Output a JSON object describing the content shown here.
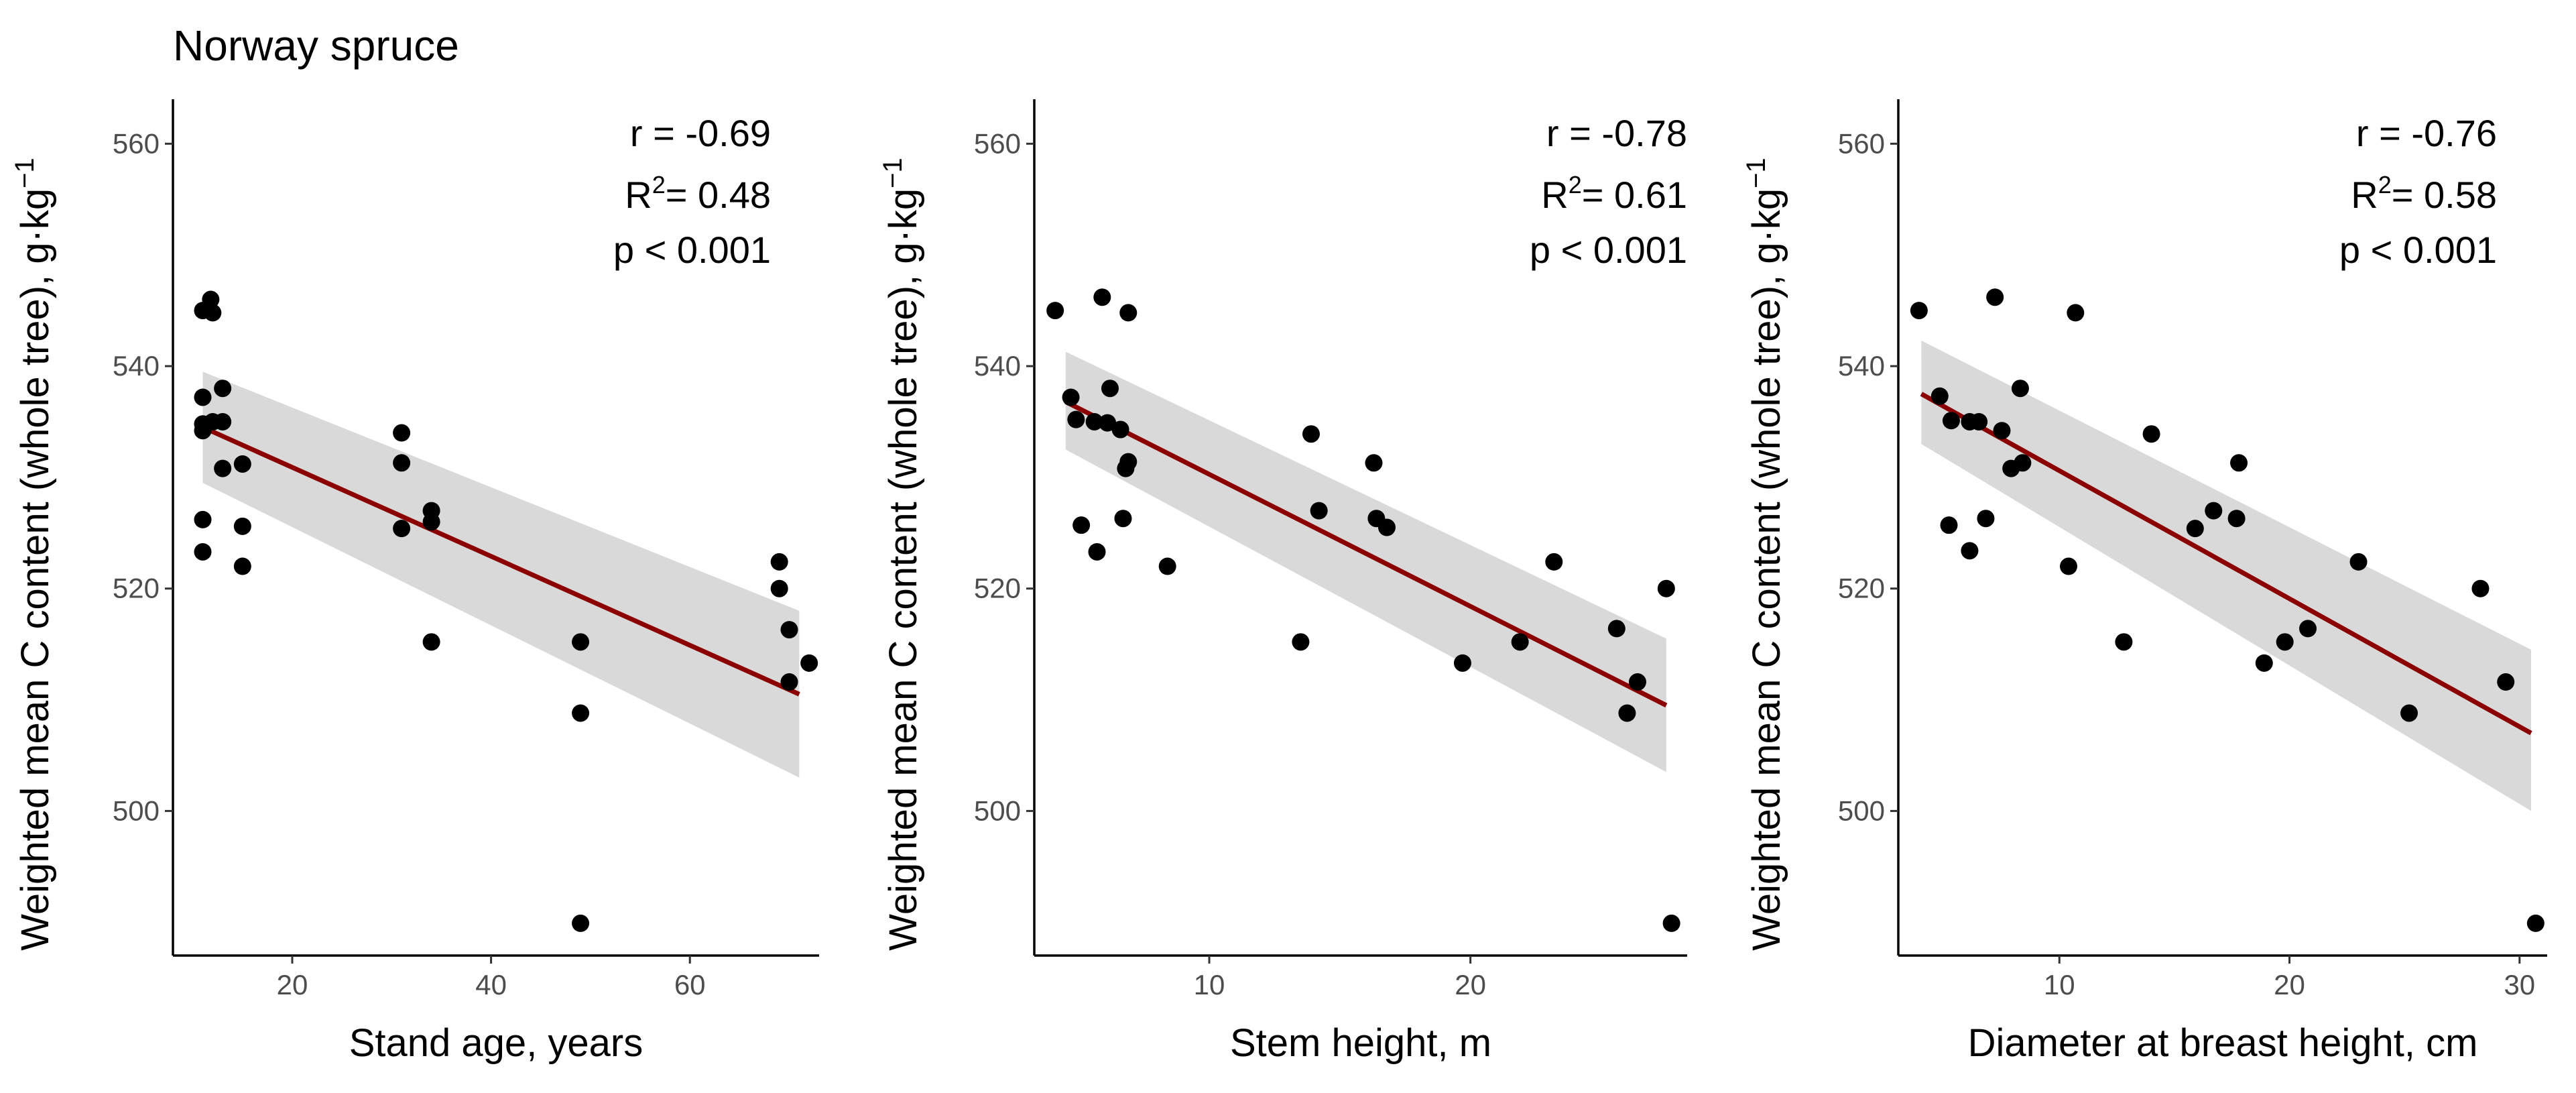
{
  "figure": {
    "title": "Norway spruce"
  },
  "colors": {
    "points": "#000000",
    "fit_line": "#8b0000",
    "ci_band": "#d9d9d9",
    "tick_text": "#4d4d4d"
  },
  "chart_data": [
    {
      "type": "scatter",
      "title": "",
      "xlabel": "Stand age, years",
      "ylabel": "Weighted mean C content (whole tree), g·kg",
      "ylabel_superscript": "−1",
      "xlim": [
        8,
        73
      ],
      "ylim": [
        487,
        564
      ],
      "x_ticks": [
        20,
        40,
        60
      ],
      "y_ticks": [
        500,
        520,
        540,
        560
      ],
      "grid": false,
      "stats": {
        "r": "r = -0.69",
        "r2_prefix": "R",
        "r2_sup": "2",
        "r2_value": "= 0.48",
        "p": "p < 0.001"
      },
      "fit": {
        "x": [
          11,
          71
        ],
        "y": [
          534.5,
          510.5
        ],
        "ci_lower": [
          529.5,
          503
        ],
        "ci_upper": [
          539.5,
          518
        ]
      },
      "points": [
        {
          "x": 11,
          "y": 545
        },
        {
          "x": 11.8,
          "y": 546
        },
        {
          "x": 12,
          "y": 544.8
        },
        {
          "x": 11,
          "y": 537.2
        },
        {
          "x": 11,
          "y": 534.8
        },
        {
          "x": 11,
          "y": 534.2
        },
        {
          "x": 12,
          "y": 535
        },
        {
          "x": 13,
          "y": 535
        },
        {
          "x": 13,
          "y": 538
        },
        {
          "x": 13,
          "y": 530.8
        },
        {
          "x": 15,
          "y": 531.2
        },
        {
          "x": 11,
          "y": 526.2
        },
        {
          "x": 11,
          "y": 523.3
        },
        {
          "x": 15,
          "y": 525.6
        },
        {
          "x": 15,
          "y": 522
        },
        {
          "x": 31,
          "y": 534
        },
        {
          "x": 31,
          "y": 531.3
        },
        {
          "x": 31,
          "y": 525.4
        },
        {
          "x": 34,
          "y": 527
        },
        {
          "x": 34,
          "y": 526
        },
        {
          "x": 34,
          "y": 515.2
        },
        {
          "x": 49,
          "y": 515.2
        },
        {
          "x": 49,
          "y": 508.8
        },
        {
          "x": 49,
          "y": 489.9
        },
        {
          "x": 69,
          "y": 522.4
        },
        {
          "x": 69,
          "y": 520
        },
        {
          "x": 70,
          "y": 516.3
        },
        {
          "x": 70,
          "y": 511.6
        },
        {
          "x": 72,
          "y": 513.3
        }
      ]
    },
    {
      "type": "scatter",
      "title": "",
      "xlabel": "Stem height, m",
      "ylabel": "Weighted mean C content (whole tree), g·kg",
      "ylabel_superscript": "−1",
      "xlim": [
        3.3,
        28.3
      ],
      "ylim": [
        487,
        564
      ],
      "x_ticks": [
        10,
        20
      ],
      "y_ticks": [
        500,
        520,
        540,
        560
      ],
      "grid": false,
      "stats": {
        "r": "r = -0.78",
        "r2_prefix": "R",
        "r2_sup": "2",
        "r2_value": "= 0.61",
        "p": "p < 0.001"
      },
      "fit": {
        "x": [
          4.5,
          27.5
        ],
        "y": [
          536.8,
          509.5
        ],
        "ci_lower": [
          532.5,
          503.5
        ],
        "ci_upper": [
          541.3,
          515.5
        ]
      },
      "points": [
        {
          "x": 4.1,
          "y": 545
        },
        {
          "x": 5.9,
          "y": 546.2
        },
        {
          "x": 6.9,
          "y": 544.8
        },
        {
          "x": 4.7,
          "y": 537.2
        },
        {
          "x": 6.2,
          "y": 538
        },
        {
          "x": 4.9,
          "y": 535.2
        },
        {
          "x": 5.6,
          "y": 535
        },
        {
          "x": 6.1,
          "y": 534.9
        },
        {
          "x": 6.6,
          "y": 534.3
        },
        {
          "x": 6.9,
          "y": 531.4
        },
        {
          "x": 6.8,
          "y": 530.8
        },
        {
          "x": 5.1,
          "y": 525.7
        },
        {
          "x": 6.7,
          "y": 526.3
        },
        {
          "x": 5.7,
          "y": 523.3
        },
        {
          "x": 8.4,
          "y": 522
        },
        {
          "x": 13.5,
          "y": 515.2
        },
        {
          "x": 13.9,
          "y": 533.9
        },
        {
          "x": 14.2,
          "y": 527
        },
        {
          "x": 16.3,
          "y": 531.3
        },
        {
          "x": 16.4,
          "y": 526.3
        },
        {
          "x": 16.8,
          "y": 525.5
        },
        {
          "x": 19.7,
          "y": 513.3
        },
        {
          "x": 21.9,
          "y": 515.2
        },
        {
          "x": 23.2,
          "y": 522.4
        },
        {
          "x": 25.6,
          "y": 516.4
        },
        {
          "x": 26,
          "y": 508.8
        },
        {
          "x": 26.4,
          "y": 511.6
        },
        {
          "x": 27.5,
          "y": 520
        },
        {
          "x": 27.7,
          "y": 489.9
        }
      ]
    },
    {
      "type": "scatter",
      "title": "",
      "xlabel": "Diameter at breast height, cm",
      "ylabel": "Weighted mean C content (whole tree), g·kg",
      "ylabel_superscript": "−1",
      "xlim": [
        3,
        31.2
      ],
      "ylim": [
        487,
        564
      ],
      "x_ticks": [
        10,
        20,
        30
      ],
      "y_ticks": [
        500,
        520,
        540,
        560
      ],
      "grid": false,
      "stats": {
        "r": "r = -0.76",
        "r2_prefix": "R",
        "r2_sup": "2",
        "r2_value": "= 0.58",
        "p": "p < 0.001"
      },
      "fit": {
        "x": [
          4,
          30.5
        ],
        "y": [
          537.5,
          507
        ],
        "ci_lower": [
          533,
          500
        ],
        "ci_upper": [
          542.3,
          514.5
        ]
      },
      "points": [
        {
          "x": 3.9,
          "y": 545
        },
        {
          "x": 7.2,
          "y": 546.2
        },
        {
          "x": 10.7,
          "y": 544.8
        },
        {
          "x": 4.8,
          "y": 537.3
        },
        {
          "x": 8.3,
          "y": 538
        },
        {
          "x": 5.3,
          "y": 535.1
        },
        {
          "x": 6.1,
          "y": 535
        },
        {
          "x": 6.5,
          "y": 535
        },
        {
          "x": 7.5,
          "y": 534.2
        },
        {
          "x": 7.9,
          "y": 530.8
        },
        {
          "x": 8.4,
          "y": 531.3
        },
        {
          "x": 5.2,
          "y": 525.7
        },
        {
          "x": 6.8,
          "y": 526.3
        },
        {
          "x": 6.1,
          "y": 523.4
        },
        {
          "x": 10.4,
          "y": 522
        },
        {
          "x": 12.8,
          "y": 515.2
        },
        {
          "x": 14,
          "y": 533.9
        },
        {
          "x": 15.9,
          "y": 525.4
        },
        {
          "x": 16.7,
          "y": 527
        },
        {
          "x": 17.8,
          "y": 531.3
        },
        {
          "x": 17.7,
          "y": 526.3
        },
        {
          "x": 18.9,
          "y": 513.3
        },
        {
          "x": 19.8,
          "y": 515.2
        },
        {
          "x": 20.8,
          "y": 516.4
        },
        {
          "x": 23,
          "y": 522.4
        },
        {
          "x": 25.2,
          "y": 508.8
        },
        {
          "x": 28.3,
          "y": 520
        },
        {
          "x": 29.4,
          "y": 511.6
        },
        {
          "x": 30.7,
          "y": 489.9
        }
      ]
    }
  ]
}
